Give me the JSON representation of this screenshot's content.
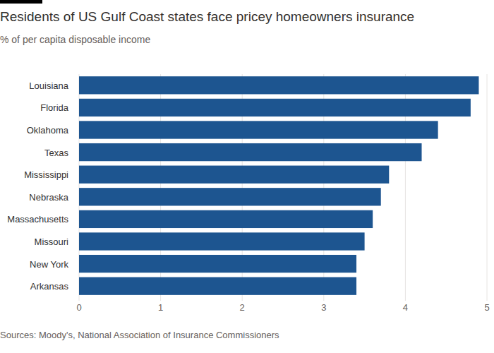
{
  "chart_data": {
    "type": "bar",
    "orientation": "horizontal",
    "title": "Residents of US Gulf Coast states face pricey homeowners insurance",
    "subtitle": "% of per capita disposable income",
    "source": "Sources: Moody's, National Association of Insurance Commissioners",
    "categories": [
      "Louisiana",
      "Florida",
      "Oklahoma",
      "Texas",
      "Mississippi",
      "Nebraska",
      "Massachusetts",
      "Missouri",
      "New York",
      "Arkansas"
    ],
    "values": [
      4.9,
      4.8,
      4.4,
      4.2,
      3.8,
      3.7,
      3.6,
      3.5,
      3.4,
      3.4
    ],
    "color": "#1d5590",
    "xlim": [
      0,
      5
    ],
    "xticks": [
      0,
      1,
      2,
      3,
      4,
      5
    ],
    "grid": true
  }
}
